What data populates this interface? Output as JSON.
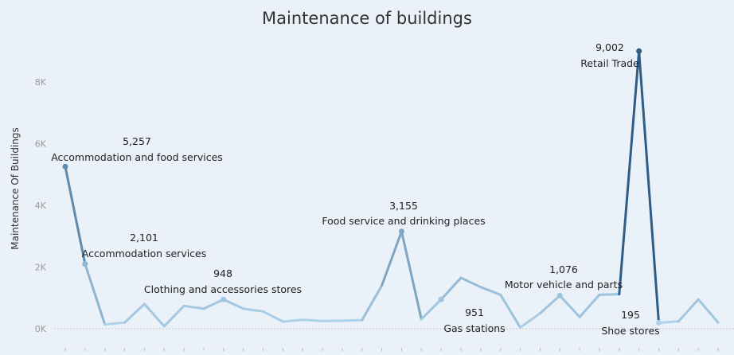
{
  "chart_data": {
    "type": "line",
    "title": "Maintenance of buildings",
    "xlabel": "",
    "ylabel": "Maintenance Of Buildings",
    "ylim": [
      0,
      9500
    ],
    "y_ticks": [
      {
        "value": 0,
        "label": "0K"
      },
      {
        "value": 2000,
        "label": "2K"
      },
      {
        "value": 4000,
        "label": "4K"
      },
      {
        "value": 6000,
        "label": "6K"
      },
      {
        "value": 8000,
        "label": "8K"
      }
    ],
    "grid": false,
    "zero_line": true,
    "color_scale": {
      "low": "#b5d8ee",
      "high": "#2e5d87",
      "max": 9002
    },
    "series": [
      {
        "values": [
          5257,
          2101,
          140,
          200,
          800,
          80,
          740,
          650,
          948,
          650,
          560,
          230,
          290,
          250,
          260,
          280,
          1400,
          3155,
          310,
          951,
          1650,
          1350,
          1100,
          40,
          500,
          1076,
          380,
          1100,
          1120,
          9002,
          195,
          240,
          950,
          200
        ]
      }
    ],
    "annotations": [
      {
        "index": 0,
        "value_label": "5,257",
        "name": "Accommodation and food services"
      },
      {
        "index": 1,
        "value_label": "2,101",
        "name": "Accommodation services"
      },
      {
        "index": 8,
        "value_label": "948",
        "name": "Clothing and accessories stores"
      },
      {
        "index": 17,
        "value_label": "3,155",
        "name": "Food service and drinking places"
      },
      {
        "index": 19,
        "value_label": "951",
        "name": "Gas stations"
      },
      {
        "index": 25,
        "value_label": "1,076",
        "name": "Motor vehicle and parts"
      },
      {
        "index": 29,
        "value_label": "9,002",
        "name": "Retail Trade"
      },
      {
        "index": 30,
        "value_label": "195",
        "name": "Shoe stores"
      }
    ]
  }
}
